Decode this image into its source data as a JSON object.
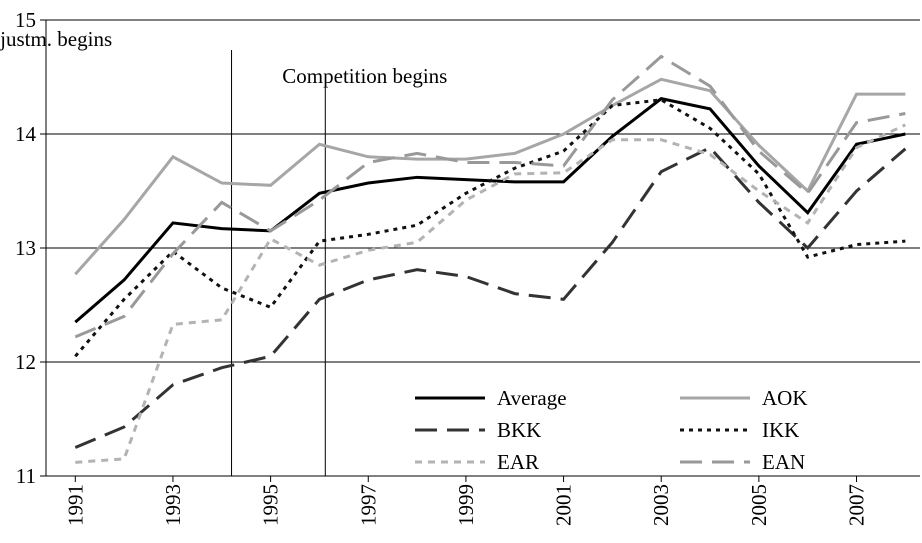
{
  "chart_data": {
    "type": "line",
    "x": [
      1991,
      1992,
      1993,
      1994,
      1995,
      1996,
      1997,
      1998,
      1999,
      2000,
      2001,
      2002,
      2003,
      2004,
      2005,
      2006,
      2007,
      2008
    ],
    "xlim": [
      1990.4,
      2008.3
    ],
    "xticks": [
      1991,
      1993,
      1995,
      1997,
      1999,
      2001,
      2003,
      2005,
      2007
    ],
    "ylim": [
      11,
      15
    ],
    "yticks": [
      11,
      12,
      13,
      14,
      15
    ],
    "grid": true,
    "annotations": [
      {
        "x": 1994.2,
        "text": "Risk adjustm. begins"
      },
      {
        "x": 1996.12,
        "text": "Competition begins"
      }
    ],
    "series": [
      {
        "name": "Average",
        "color": "#000000",
        "dash": "none",
        "values": [
          12.35,
          12.72,
          13.22,
          13.17,
          13.15,
          13.48,
          13.57,
          13.62,
          13.6,
          13.58,
          13.58,
          13.98,
          14.31,
          14.22,
          13.72,
          13.31,
          13.91,
          14.0
        ]
      },
      {
        "name": "AOK",
        "color": "#a6a6a6",
        "dash": "none",
        "values": [
          12.77,
          13.25,
          13.8,
          13.57,
          13.55,
          13.91,
          13.8,
          13.78,
          13.78,
          13.83,
          14.0,
          14.25,
          14.48,
          14.38,
          13.9,
          13.5,
          14.35,
          14.35
        ]
      },
      {
        "name": "BKK",
        "color": "#333333",
        "dash": "22 10",
        "values": [
          11.25,
          11.43,
          11.8,
          11.95,
          12.05,
          12.55,
          12.72,
          12.81,
          12.75,
          12.6,
          12.55,
          13.05,
          13.67,
          13.88,
          13.4,
          13.0,
          13.5,
          13.87
        ]
      },
      {
        "name": "IKK",
        "color": "#111111",
        "dash": "4 5",
        "values": [
          12.05,
          12.55,
          12.97,
          12.65,
          12.48,
          13.06,
          13.12,
          13.2,
          13.48,
          13.7,
          13.85,
          14.25,
          14.3,
          14.05,
          13.65,
          12.92,
          13.03,
          13.06
        ]
      },
      {
        "name": "EAR",
        "color": "#b3b3b3",
        "dash": "7 6",
        "values": [
          11.12,
          11.15,
          12.33,
          12.37,
          13.08,
          12.85,
          12.98,
          13.05,
          13.42,
          13.65,
          13.66,
          13.95,
          13.95,
          13.82,
          13.5,
          13.22,
          13.88,
          14.08
        ]
      },
      {
        "name": "EAN",
        "color": "#999999",
        "dash": "22 10",
        "values": [
          12.22,
          12.4,
          12.95,
          13.4,
          13.15,
          13.42,
          13.75,
          13.83,
          13.75,
          13.75,
          13.72,
          14.3,
          14.68,
          14.42,
          13.85,
          13.48,
          14.1,
          14.18
        ]
      }
    ]
  }
}
